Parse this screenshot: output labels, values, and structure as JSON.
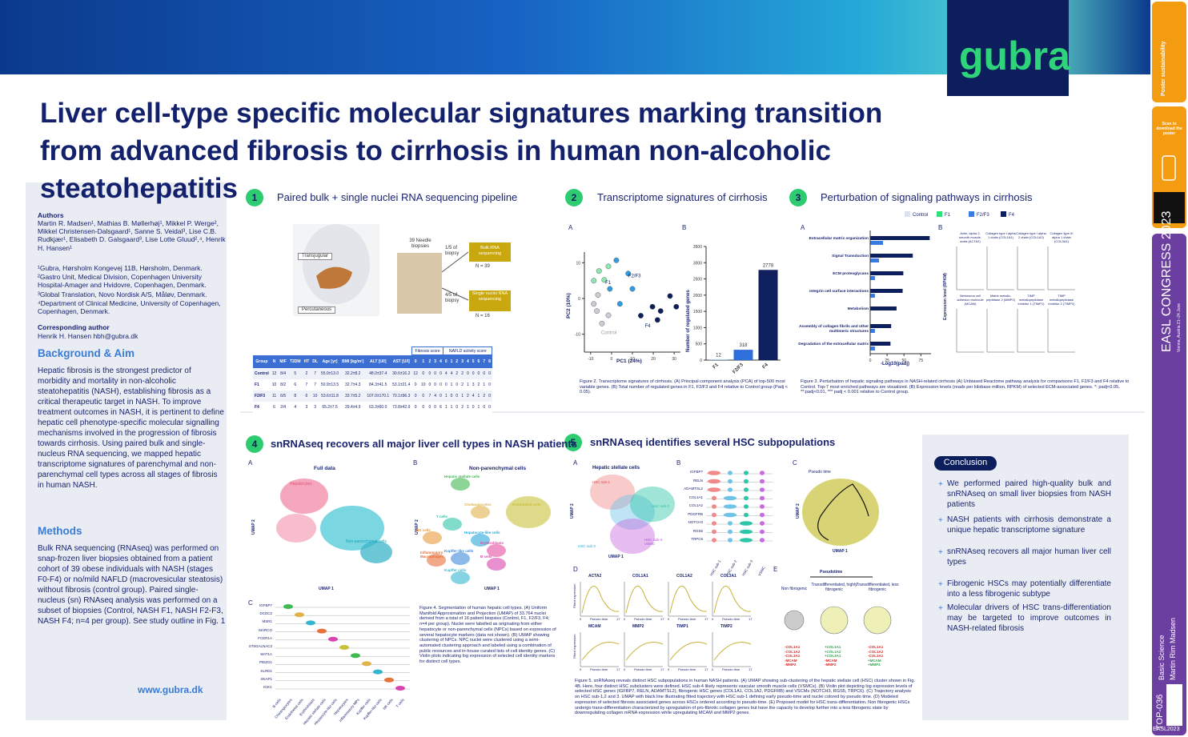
{
  "header": {
    "title": "Liver cell-type specific molecular signatures marking transition from advanced fibrosis to cirrhosis in human non-alcoholic steatohepatitis",
    "logo": "gubra"
  },
  "sidebar": {
    "authors_heading": "Authors",
    "authors": "Martin R. Madsen¹, Mathias B. Møllerhøj¹, Mikkel P. Werge², Mikkel Christensen-Dalsgaard¹, Sanne S. Veidal³, Lise C.B. Rudkjær¹, Elisabeth D. Galsgaard³, Lise Lotte Gluud²,⁴, Henrik H. Hansen¹",
    "affiliations": [
      "¹Gubra, Hørsholm Kongevej 11B, Hørsholm, Denmark.",
      "²Gastro Unit, Medical Division, Copenhagen University Hospital-Amager and Hvidovre, Copenhagen, Denmark.",
      "³Global Translation, Novo Nordisk A/S, Måløv, Denmark.",
      "⁴Department of Clinical Medicine, University of Copenhagen, Copenhagen, Denmark."
    ],
    "corresponding_heading": "Corresponding author",
    "corresponding": "Henrik H. Hansen hbh@gubra.dk",
    "background_heading": "Background & Aim",
    "background": "Hepatic fibrosis is the strongest predictor of morbidity and mortality in non-alcoholic steatohepatitis (NASH), establishing fibrosis as a critical therapeutic target in NASH. To improve treatment outcomes in NASH, it is pertinent to define hepatic cell phenotype-specific molecular signalling mechanisms involved in the progression of fibrosis towards cirrhosis. Using paired bulk and single-nucleus RNA sequencing, we mapped hepatic transcriptome signatures of parenchymal and non-parenchymal cell types across all stages of fibrosis in human NASH.",
    "methods_heading": "Methods",
    "methods": "Bulk RNA sequencing (RNAseq) was performed on snap-frozen liver biopsies obtained from a patient cohort of 39 obese individuals with NASH (stages F0-F4) or no/mild NAFLD (macrovesicular steatosis) without fibrosis (control group). Paired single-nucleus (sn) RNAseq analysis was performed on a subset of biopsies (Control, NASH F1, NASH F2-F3, NASH F4; n=4 per group). See study outline in Fig. 1",
    "website": "www.gubra.dk"
  },
  "sections": [
    {
      "number": "1",
      "title": "Paired bulk + single nuclei RNA sequencing pipeline"
    },
    {
      "number": "2",
      "title": "Transcriptome signatures of cirrhosis"
    },
    {
      "number": "3",
      "title": "Perturbation of signaling pathways in cirrhosis"
    },
    {
      "number": "4",
      "title": "snRNAseq recovers all major liver cell types in NASH patients"
    },
    {
      "number": "5",
      "title": "snRNAseq identifies several HSC subpopulations"
    }
  ],
  "section1": {
    "transjugular": "Transjugular",
    "percutaneous": "Percutaneous",
    "biopsies": "39 Needle biopsies",
    "bulk_fraction": "1/5 of biopsy",
    "bulk": "Bulk RNA sequencing",
    "bulk_n": "N = 39",
    "sn_fraction": "4/5 of biopsy",
    "sn": "Single nuclei RNA sequencing",
    "sn_n": "N = 16",
    "table": {
      "group_headers": [
        "Fibrosis score",
        "NAFLD activity score"
      ],
      "columns": [
        "Group",
        "N",
        "M/F",
        "T2DM",
        "HT",
        "DL",
        "Age [yr]",
        "BMI [kg/m²]",
        "ALT [U/l]",
        "AST [U/l]",
        "0",
        "1",
        "2",
        "3",
        "4",
        "0",
        "1",
        "2",
        "3",
        "4",
        "5",
        "6",
        "7",
        "8"
      ],
      "rows": [
        [
          "Control",
          "12",
          "8/4",
          "5",
          "2",
          "7",
          "55.0±13.0",
          "32.2±8.2",
          "48.0±37.4",
          "30.6±16.2",
          "12",
          "0",
          "0",
          "0",
          "0",
          "4",
          "4",
          "2",
          "2",
          "0",
          "0",
          "0",
          "0",
          "0"
        ],
        [
          "F1",
          "10",
          "8/2",
          "6",
          "7",
          "7",
          "50.9±13.5",
          "32.7±4.3",
          "84.3±41.5",
          "53.1±21.4",
          "0",
          "10",
          "0",
          "0",
          "0",
          "0",
          "1",
          "0",
          "2",
          "1",
          "3",
          "2",
          "1",
          "0"
        ],
        [
          "F2/F3",
          "11",
          "6/5",
          "8",
          "6",
          "10",
          "53.6±11.8",
          "33.7±5.2",
          "107.0±170.1",
          "70.1±96.3",
          "0",
          "0",
          "7",
          "4",
          "0",
          "1",
          "0",
          "0",
          "1",
          "2",
          "4",
          "1",
          "2",
          "0"
        ],
        [
          "F4",
          "6",
          "2/4",
          "4",
          "3",
          "3",
          "65.2±7.5",
          "29.4±4.9",
          "63.3±60.0",
          "73.8±42.9",
          "0",
          "0",
          "0",
          "0",
          "6",
          "1",
          "1",
          "0",
          "2",
          "1",
          "0",
          "1",
          "0",
          "0"
        ]
      ]
    }
  },
  "figure2": {
    "panel_a": "A",
    "panel_b": "B",
    "pca": {
      "x_label": "PC1 (24%)",
      "y_label": "PC2 (10%)",
      "xlim": [
        -13,
        33
      ],
      "ylim": [
        -15,
        13
      ],
      "xticks": [
        -10,
        0,
        10,
        20,
        30
      ],
      "yticks": [
        -10,
        0,
        10
      ],
      "series": [
        {
          "name": "Control",
          "color": "#c8cdd6",
          "x": [
            -7,
            -4.6,
            -8.5,
            -1.5,
            -6.5
          ],
          "y": [
            -3.5,
            -7,
            -1.5,
            -4.7,
            1
          ]
        },
        {
          "name": "F1",
          "color": "#8ee6b0",
          "x": [
            -8.5,
            -3.5,
            -6,
            -1.5
          ],
          "y": [
            5,
            5.2,
            7.7,
            9
          ]
        },
        {
          "name": "F2/F3",
          "color": "#2f9de0",
          "x": [
            2.3,
            8,
            -0.8,
            10,
            4
          ],
          "y": [
            10.7,
            7,
            2.7,
            2.7,
            -1.5
          ]
        },
        {
          "name": "F4",
          "color": "#0c1e5b",
          "x": [
            14,
            19.6,
            23.5,
            28,
            31,
            22
          ],
          "y": [
            -4.8,
            -2.3,
            -3.5,
            0.7,
            -2.3,
            -6
          ]
        }
      ]
    },
    "bars": {
      "y_label": "Number of regulated genes",
      "categories": [
        "F1",
        "F2/F3",
        "F4"
      ],
      "values": [
        12,
        318,
        2778
      ],
      "colors": [
        "#4c94ec",
        "#2f6fdc",
        "#10205e"
      ],
      "ylim": [
        0,
        3500
      ],
      "yticks": [
        0,
        500,
        1000,
        1500,
        2000,
        2500,
        3000,
        3500
      ]
    },
    "caption": "Figure 2. Transcriptome signatures of cirrhosis. (A) Principal component analysis (PCA) of top-500 most variable genes. (B) Total number of regulated genes in F1, F2/F3 and F4 relative to Control group (Padj < 0.05)."
  },
  "figure3": {
    "legend": [
      {
        "name": "Control",
        "color": "#dde3ee"
      },
      {
        "name": "F1",
        "color": "#2ee07a"
      },
      {
        "name": "F2/F3",
        "color": "#3a7be0"
      },
      {
        "name": "F4",
        "color": "#0c1e5b"
      }
    ],
    "panel_a": "A",
    "panel_b": "B",
    "pathways": [
      "Extracellular matrix organization",
      "Signal Transduction",
      "ECM proteoglycans",
      "Integrin cell surface interactions",
      "Metabolism",
      "Assembly of collagen fibrils and other multimeric structures",
      "Degradation of the extracellular matrix"
    ],
    "series": [
      {
        "name": "F4",
        "color": "#0c1e5b",
        "values": [
          88,
          63,
          49,
          48,
          39,
          31,
          30
        ]
      },
      {
        "name": "F2/F3",
        "color": "#3a7be0",
        "values": [
          19,
          13,
          7,
          7,
          null,
          7,
          7
        ]
      }
    ],
    "xlim": [
      0,
      90
    ],
    "xticks": [
      0,
      25,
      50,
      75
    ],
    "x_label": "-Log10(padj)",
    "gene_panels": [
      "Actin, alpha 2, smooth muscle, aorta (ACTA2)",
      "Collagen type I alpha 1 chain (COL1A1)",
      "Collagen type I alpha 2 chain (COL1A2)",
      "Collagen type III alpha 1 chain (COL3A1)",
      "Melanoma cell adhesion molecule (MCAM)",
      "Matrix metallo-peptidase 2 (MMP2)",
      "TIMP metallopeptidase inhibitor 1 (TIMP1)",
      "TIMP metallopeptidase inhibitor 2 (TIMP2)"
    ],
    "gene_y_label": "Expression level (RPKM)",
    "caption": "Figure 3. Perturbation of hepatic signaling pathways in NASH-related cirrhosis (A) Unbiased Reactome pathway analysis for comparisons F1, F2/F3 and F4 relative to Control. Top-7 most enriched pathways are visualized. (B) Expression levels (reads per kilobase million, RPKM) of selected ECM-associated genes. *: padj<0.05, **:padj<0.01, *** padj < 0.001 relative to Control group."
  },
  "figure4": {
    "panel_a": "A",
    "panel_b": "B",
    "panel_c": "C",
    "full": "Full data",
    "npc": "Non-parenchymal cells",
    "umap1": "UMAP 1",
    "umap2": "UMAP 2",
    "hepatocytes": "Hepatocytes",
    "npc_label": "Non-parenchymal cells",
    "clusters": [
      "Hepatic stellate cells",
      "Endothelial cells",
      "Cholangiocytes",
      "T cells",
      "NK cells",
      "Hepatocyte-like cells",
      "Erythroblasts",
      "B cells",
      "Kupffer-like cells",
      "Inflammatory Macrophages",
      "Kupffer cells"
    ],
    "genes": [
      "IGFBP7",
      "DCDC2",
      "MSR1",
      "MARCO",
      "FCER1A",
      "ST6GALNAC3",
      "MAT1A",
      "PIEZO1",
      "KLRD1",
      "SKAP1",
      "IGKC"
    ],
    "cell_types": [
      "B cells",
      "Cholangiocytes",
      "Endothelial cells",
      "Erythroblasts",
      "Hepatic stellate cells",
      "Hepatocyte-like cells",
      "Hepatocytes",
      "Inflammatory MPs",
      "Kupffer cells",
      "Kupffer-like cells",
      "NK cells",
      "T cells"
    ],
    "caption": "Figure 4. Segmentation of human hepatic cell types. (A) Uniform Manifold Approximation and Projection (UMAP) of 33.764 nuclei derived from a total of 16 patient biopsies (Control, F1, F2/F3, F4; n=4 per group). Nuclei were labelled as originating from either hepatocyte or non-parenchymal cells (NPCs) based on expression of several hepatocyte markers (data not shown). (B) UMAP showing clustering of NPCs. NPC nuclei were clustered using a semi-automated clustering approach and labeled using a combination of public resources and in-house curated lists of cell identity genes. (C) Violin plots indicating log expression of selected cell identity markers for distinct cell types."
  },
  "figure5": {
    "panel_a": "A",
    "panel_b": "B",
    "panel_c": "C",
    "panel_d": "D",
    "panel_e": "E",
    "hsc": "Hepatic stellate cells",
    "subs": [
      "HSC sub-1",
      "HSC sub-2",
      "HSC sub-3",
      "HSC sub-4 VSMC"
    ],
    "umap1": "UMAP 1",
    "umap2": "UMAP 2",
    "genes": [
      "IGFBP7",
      "RELN",
      "ADAMTSL2",
      "COL1A1",
      "COL1A2",
      "PDGFRB",
      "NOTCH3",
      "RGS5",
      "TRPC6"
    ],
    "columns": [
      "HSC sub-1",
      "HSC sub-2",
      "HSC sub-3",
      "VSMC"
    ],
    "pseudo": "Pseudo time",
    "curves": [
      "ACTA2",
      "COL1A1",
      "COL1A2",
      "COL3A1",
      "MCAM",
      "MMP2",
      "TIMP1",
      "TIMP2"
    ],
    "curve_x": "Pseudo time",
    "curve_y": "Fitted expression",
    "curve_ticks": [
      0,
      17
    ],
    "pseudotime": "Pseudotime",
    "states": [
      "Non fibrogenic",
      "Transdifferentiated, highly fibrogenic",
      "Transdifferentiated, less fibrogenic"
    ],
    "markers": [
      [
        "-COL1A1",
        "-COL1A2",
        "-COL3A1",
        "-MCAM",
        "-MMP2"
      ],
      [
        "+COL1A1",
        "+COL1A2",
        "+COL3A1",
        "-MCAM",
        "-MMP2"
      ],
      [
        "-COL1A1",
        "-COL1A2",
        "-COL3A1",
        "+MCAM",
        "+MMP2"
      ]
    ],
    "caption": "Figure 5. snRNAseq reveals distinct HSC subpopulations in human NASH patients. (A) UMAP showing sub-clustering of the hepatic stellate cell (HSC) cluster shown in Fig. 4B. Here, four distinct HSC subclusters were defined. HSC sub-4 likely represents vascular smooth muscle cells (VSMCs). (B) Violin plot depicting log expression levels of selected HSC genes (IGFBP7, RELN, ADAMTSL2), fibrogenic HSC genes (COL1A1, COL1A2, PDGFRB) and VSCMs (NOTCH3, RGS5, TRPC6). (C) Trajectory analysis on HSC sub-1,2 and 3. UMAP with black line illustrating fitted trajectory with HSC sub-1 defining early pseudo-time and nuclei colored by pseudo time. (D) Modeled expression of selected fibrosis associated genes across HSCs ordered according to pseudo-time. (E) Proposed model for HSC trans-differentiation. Non fibrogenic HSCs undergo trans-differentiation characterized by upregulation of pro-fibrotic collagen genes but have the capacity to develop further into a less fibrogenic state by downregulating collagen mRNA expression while upregulating MCAM and MMP2 genes."
  },
  "conclusion": {
    "heading": "Conclusion",
    "bullets": [
      "We performed paired high-quality bulk and snRNAseq on small liver biopsies from NASH patients",
      "NASH patients with cirrhosis demonstrate a unique hepatic transcriptome signature",
      "snRNAseq recovers all major human liver cell types",
      "Fibrogenic HSCs may potentially differentiate into a less fibrogenic subtype",
      "Molecular drivers of HSC trans-differentiation may be targeted to improve outcomes in NASH-related fibrosis"
    ]
  },
  "strip": {
    "sustain": "Poster sustainability",
    "scan": "Scan to download the poster",
    "congress": "EASL CONGRESS 2023",
    "city": "Vienna, Austria 21–24 June",
    "track": "Basic Science",
    "presenter": "Martin Rim Madsen",
    "code": "TOP-036",
    "tag": "EASL2023"
  }
}
